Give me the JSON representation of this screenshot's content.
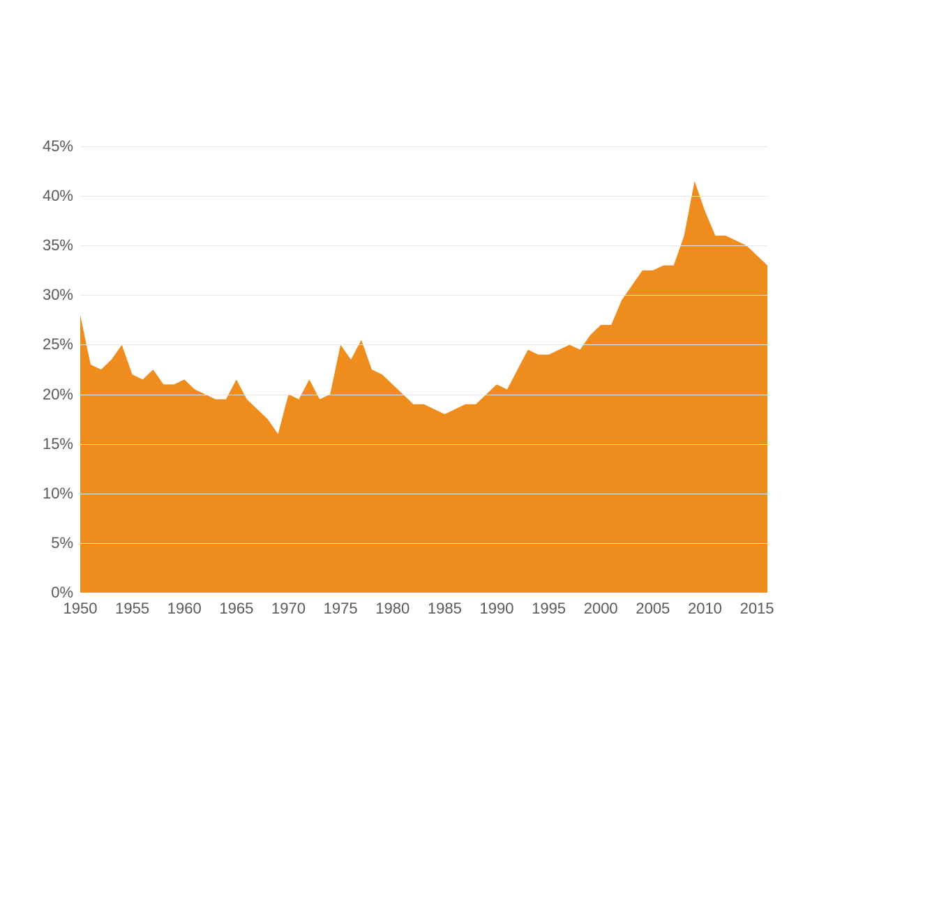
{
  "chart": {
    "type": "area",
    "background_color": "#ffffff",
    "fill_color": "#ee8c1e",
    "grid_color": "#e6e6e6",
    "axis_text_color": "#595959",
    "tick_fontsize": 22,
    "font_family": "Arial, Helvetica, sans-serif",
    "x": {
      "min": 1950,
      "max": 2016,
      "tick_step": 5,
      "ticks": [
        1950,
        1955,
        1960,
        1965,
        1970,
        1975,
        1980,
        1985,
        1990,
        1995,
        2000,
        2005,
        2010,
        2015
      ]
    },
    "y": {
      "min": 0,
      "max": 45,
      "tick_step": 5,
      "ticks": [
        0,
        5,
        10,
        15,
        20,
        25,
        30,
        35,
        40,
        45
      ],
      "suffix": "%"
    },
    "series": [
      {
        "year": 1950,
        "value": 28.0
      },
      {
        "year": 1951,
        "value": 23.0
      },
      {
        "year": 1952,
        "value": 22.5
      },
      {
        "year": 1953,
        "value": 23.5
      },
      {
        "year": 1954,
        "value": 25.0
      },
      {
        "year": 1955,
        "value": 22.0
      },
      {
        "year": 1956,
        "value": 21.5
      },
      {
        "year": 1957,
        "value": 22.5
      },
      {
        "year": 1958,
        "value": 21.0
      },
      {
        "year": 1959,
        "value": 21.0
      },
      {
        "year": 1960,
        "value": 21.5
      },
      {
        "year": 1961,
        "value": 20.5
      },
      {
        "year": 1962,
        "value": 20.0
      },
      {
        "year": 1963,
        "value": 19.5
      },
      {
        "year": 1964,
        "value": 19.5
      },
      {
        "year": 1965,
        "value": 21.5
      },
      {
        "year": 1966,
        "value": 19.5
      },
      {
        "year": 1967,
        "value": 18.5
      },
      {
        "year": 1968,
        "value": 17.5
      },
      {
        "year": 1969,
        "value": 16.0
      },
      {
        "year": 1970,
        "value": 20.0
      },
      {
        "year": 1971,
        "value": 19.5
      },
      {
        "year": 1972,
        "value": 21.5
      },
      {
        "year": 1973,
        "value": 19.5
      },
      {
        "year": 1974,
        "value": 20.0
      },
      {
        "year": 1975,
        "value": 25.0
      },
      {
        "year": 1976,
        "value": 23.5
      },
      {
        "year": 1977,
        "value": 25.5
      },
      {
        "year": 1978,
        "value": 22.5
      },
      {
        "year": 1979,
        "value": 22.0
      },
      {
        "year": 1980,
        "value": 21.0
      },
      {
        "year": 1981,
        "value": 20.0
      },
      {
        "year": 1982,
        "value": 19.0
      },
      {
        "year": 1983,
        "value": 19.0
      },
      {
        "year": 1984,
        "value": 18.5
      },
      {
        "year": 1985,
        "value": 18.0
      },
      {
        "year": 1986,
        "value": 18.5
      },
      {
        "year": 1987,
        "value": 19.0
      },
      {
        "year": 1988,
        "value": 19.0
      },
      {
        "year": 1989,
        "value": 20.0
      },
      {
        "year": 1990,
        "value": 21.0
      },
      {
        "year": 1991,
        "value": 20.5
      },
      {
        "year": 1992,
        "value": 22.5
      },
      {
        "year": 1993,
        "value": 24.5
      },
      {
        "year": 1994,
        "value": 24.0
      },
      {
        "year": 1995,
        "value": 24.0
      },
      {
        "year": 1996,
        "value": 24.5
      },
      {
        "year": 1997,
        "value": 25.0
      },
      {
        "year": 1998,
        "value": 24.5
      },
      {
        "year": 1999,
        "value": 26.0
      },
      {
        "year": 2000,
        "value": 27.0
      },
      {
        "year": 2001,
        "value": 27.0
      },
      {
        "year": 2002,
        "value": 29.5
      },
      {
        "year": 2003,
        "value": 31.0
      },
      {
        "year": 2004,
        "value": 32.5
      },
      {
        "year": 2005,
        "value": 32.5
      },
      {
        "year": 2006,
        "value": 33.0
      },
      {
        "year": 2007,
        "value": 33.0
      },
      {
        "year": 2008,
        "value": 36.0
      },
      {
        "year": 2009,
        "value": 41.5
      },
      {
        "year": 2010,
        "value": 38.5
      },
      {
        "year": 2011,
        "value": 36.0
      },
      {
        "year": 2012,
        "value": 36.0
      },
      {
        "year": 2013,
        "value": 35.5
      },
      {
        "year": 2014,
        "value": 35.0
      },
      {
        "year": 2015,
        "value": 34.0
      },
      {
        "year": 2016,
        "value": 33.0
      }
    ]
  }
}
